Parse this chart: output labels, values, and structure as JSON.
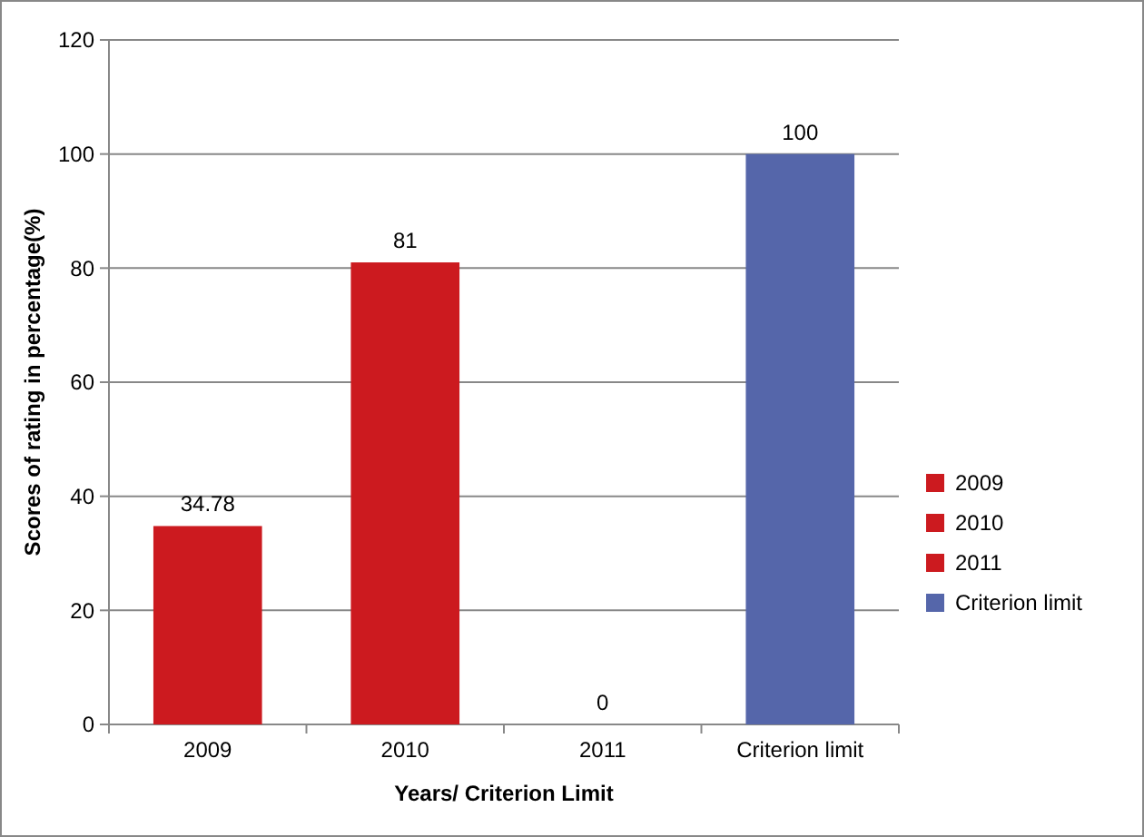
{
  "chart_data": {
    "type": "bar",
    "stacked": true,
    "xlabel": "Years/ Criterion Limit",
    "ylabel": "Scores of rating in percentage(%)",
    "categories": [
      "2009",
      "2010",
      "2011",
      "Criterion limit"
    ],
    "series": [
      {
        "name": "2009",
        "color": "#cc1a1f",
        "values": [
          34.78,
          null,
          null,
          null
        ]
      },
      {
        "name": "2010",
        "color": "#cc1a1f",
        "values": [
          null,
          81,
          null,
          null
        ]
      },
      {
        "name": "2011",
        "color": "#cc1a1f",
        "values": [
          null,
          null,
          0,
          null
        ]
      },
      {
        "name": "Criterion limit",
        "color": "#5566aa",
        "values": [
          null,
          null,
          null,
          100
        ]
      }
    ],
    "ylim": [
      0,
      120
    ],
    "yticks": [
      0,
      20,
      40,
      60,
      80,
      100,
      120
    ],
    "grid": "y",
    "legend": "right",
    "data_labels": true
  }
}
